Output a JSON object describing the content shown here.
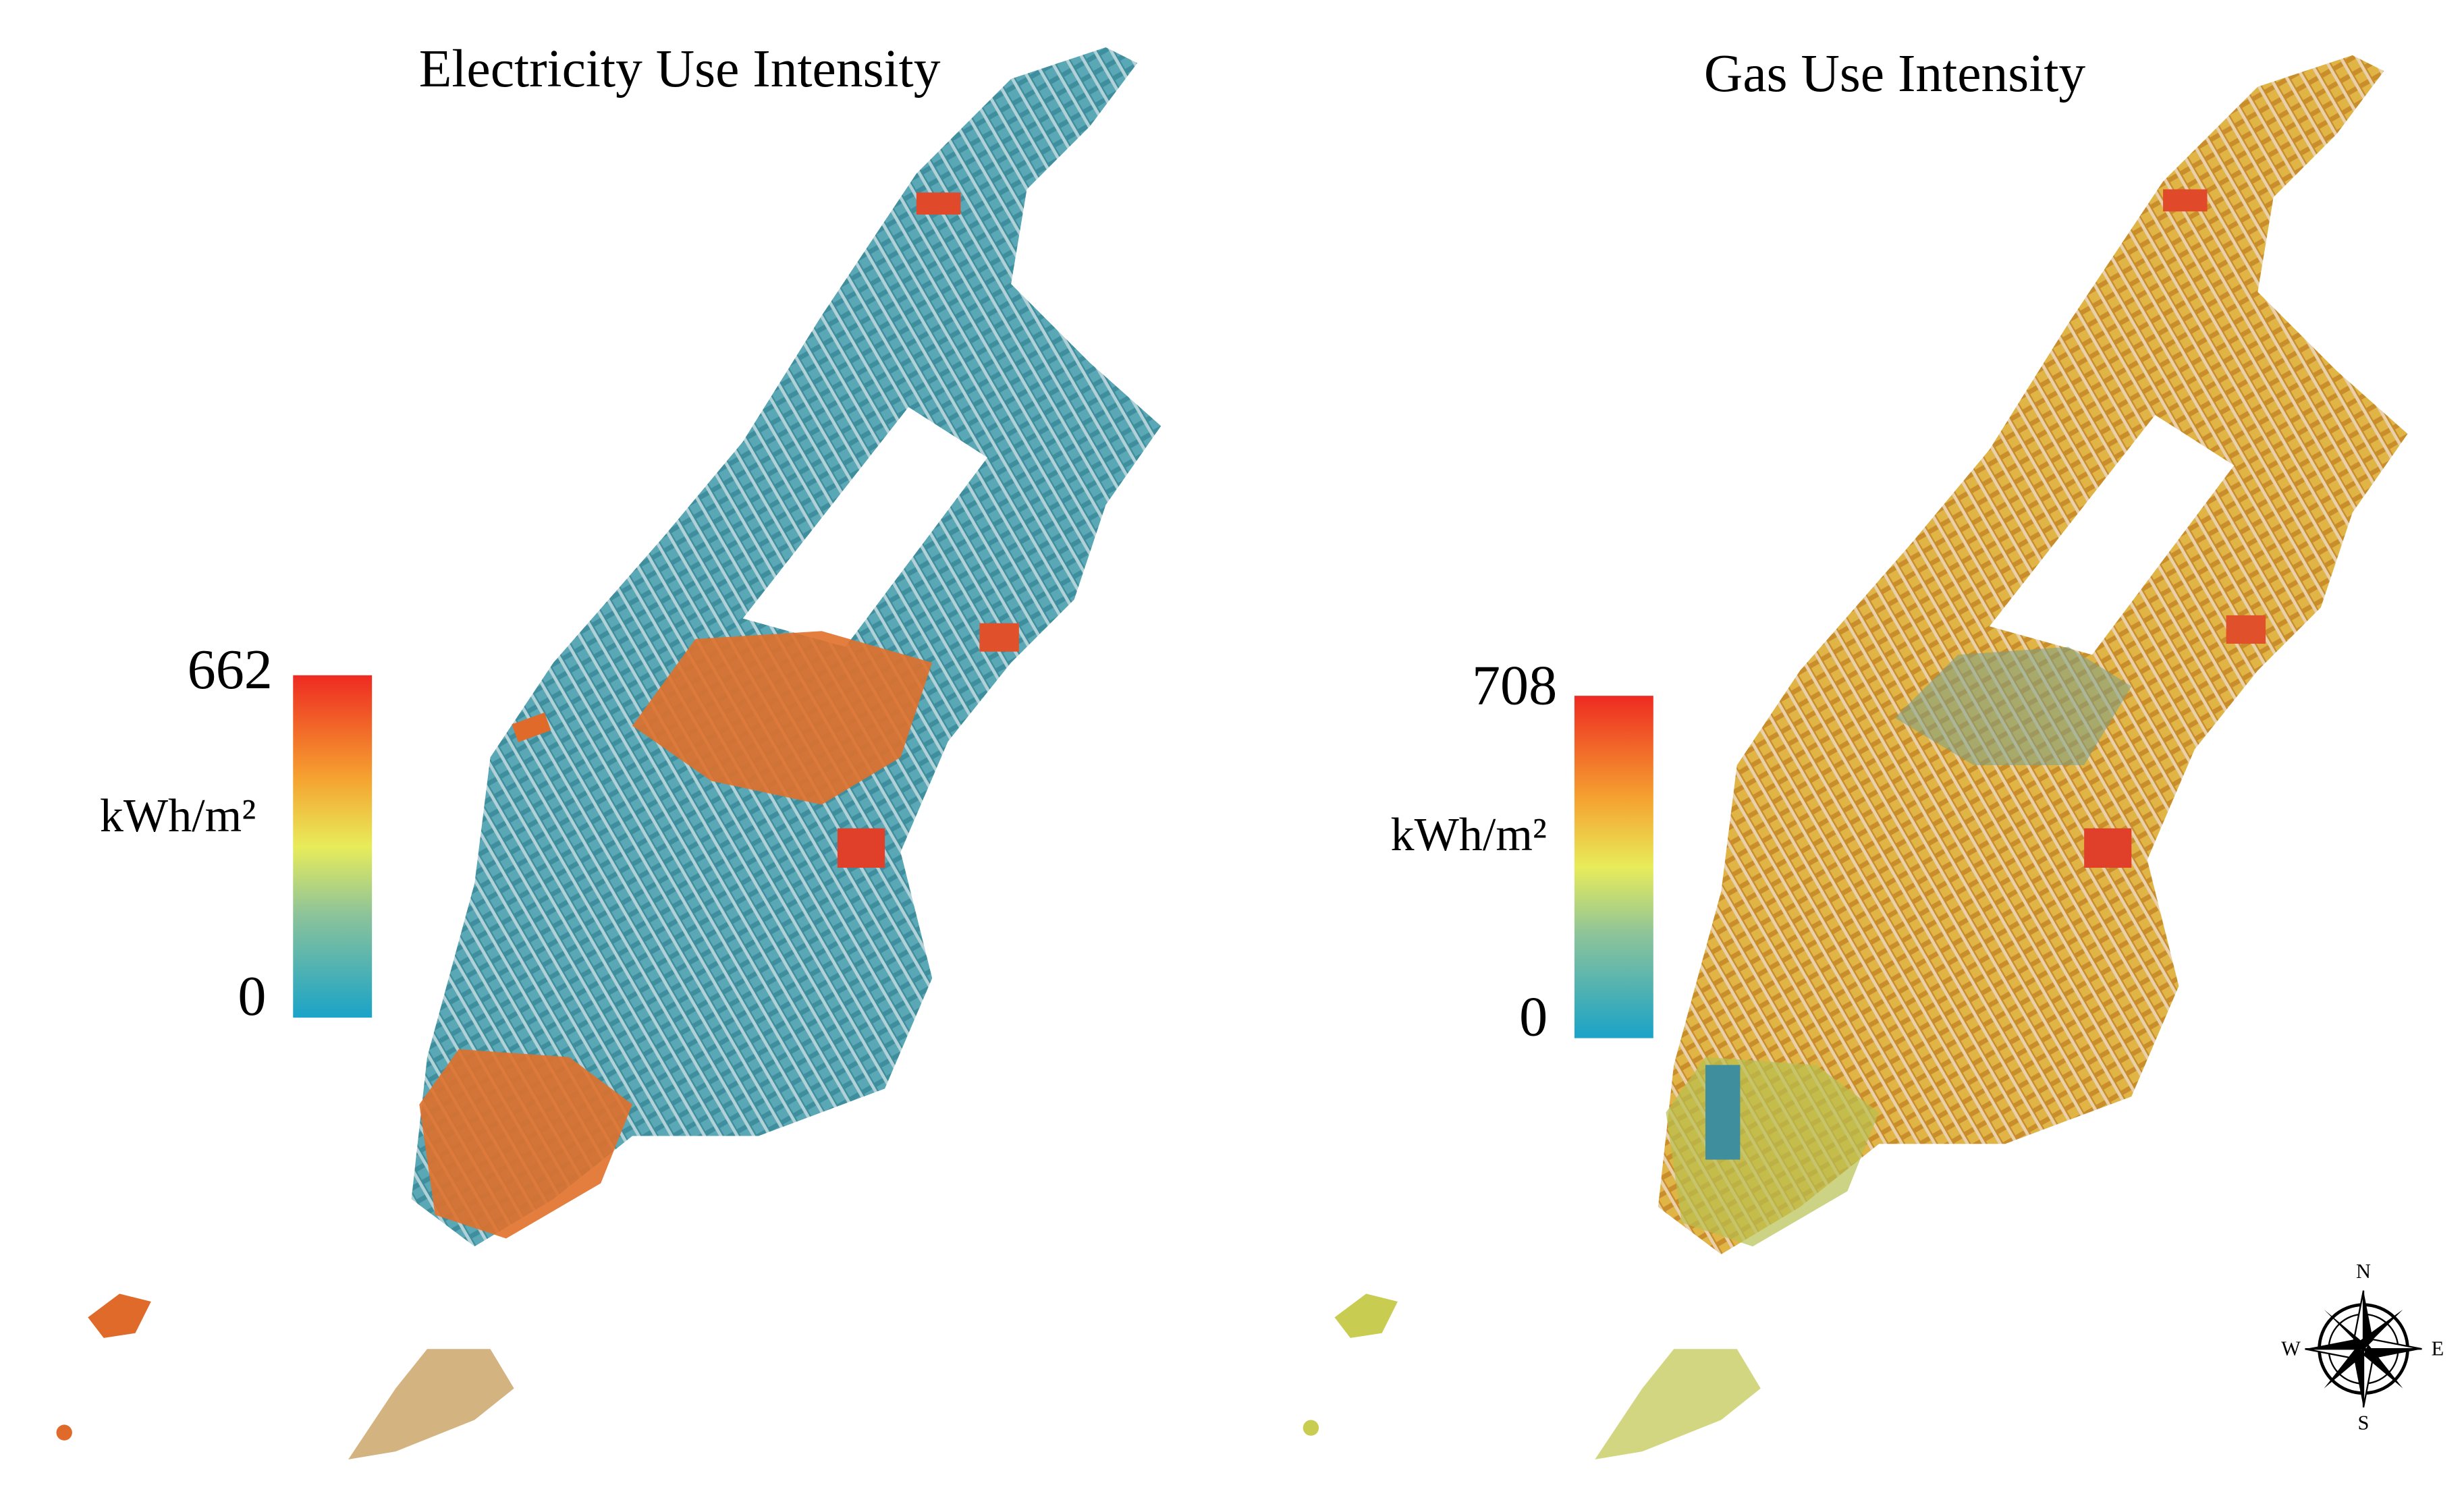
{
  "maps": [
    {
      "title": "Electricity Use Intensity",
      "colorbar": {
        "max": 662,
        "min": 0,
        "unit": "kWh/m²"
      }
    },
    {
      "title": "Gas Use Intensity",
      "colorbar": {
        "max": 708,
        "min": 0,
        "unit": "kWh/m²"
      }
    }
  ],
  "compass": {
    "north": "N",
    "east": "E",
    "south": "S",
    "west": "W"
  }
}
